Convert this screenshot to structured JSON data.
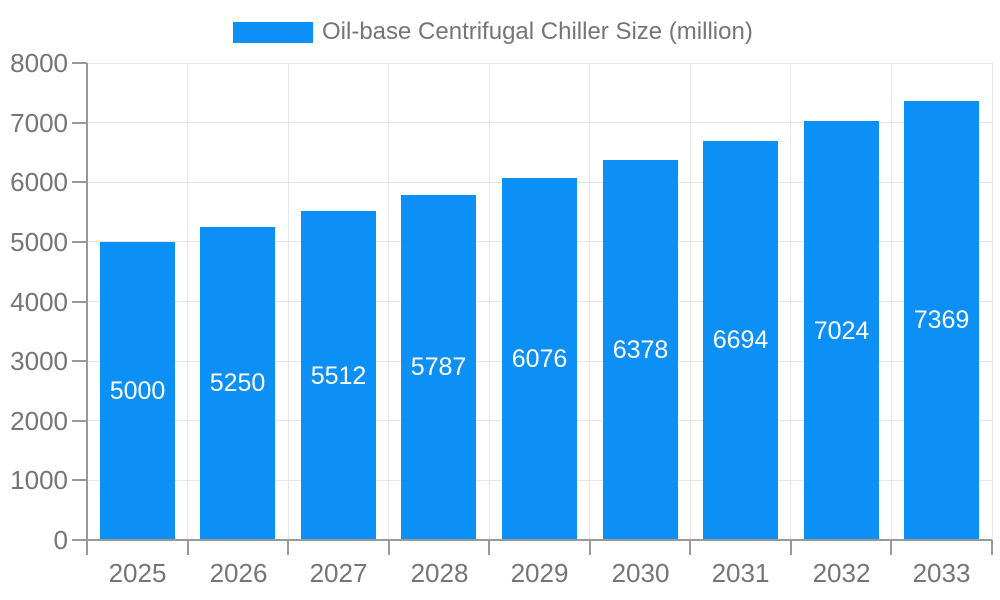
{
  "chart_data": {
    "type": "bar",
    "title": "Oil-base Centrifugal Chiller Size (million)",
    "legend_position": "top-center",
    "categories": [
      "2025",
      "2026",
      "2027",
      "2028",
      "2029",
      "2030",
      "2031",
      "2032",
      "2033"
    ],
    "values": [
      5000,
      5250,
      5512,
      5787,
      6076,
      6378,
      6694,
      7024,
      7369
    ],
    "xlabel": "",
    "ylabel": "",
    "ylim": [
      0,
      8000
    ],
    "ytick_step": 1000,
    "grid": true,
    "bar_value_labels": "inside-center",
    "colors": {
      "bar": "#0d90f6",
      "bar_label_text": "#ffffff",
      "grid": "#e6e6e6",
      "axis": "#999999",
      "tick_text": "#757575"
    }
  }
}
